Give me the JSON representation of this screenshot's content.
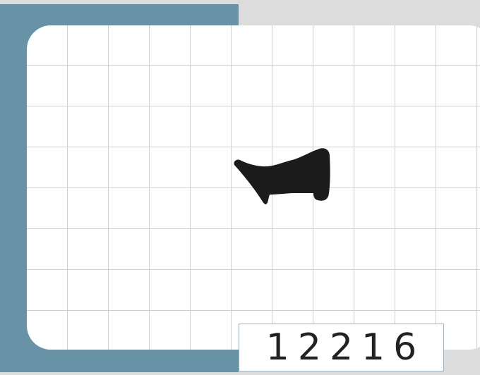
{
  "score": {
    "value": "12216"
  },
  "puzzle": {
    "silhouette_icon": "boot-silhouette-icon",
    "silhouette_color": "#1b1b1b"
  },
  "colors": {
    "background": "#dcdcdc",
    "accent_panel": "#6893a6",
    "card": "#ffffff",
    "grid_lines": "#cfcfcf",
    "score_border": "#9eb3bd"
  }
}
